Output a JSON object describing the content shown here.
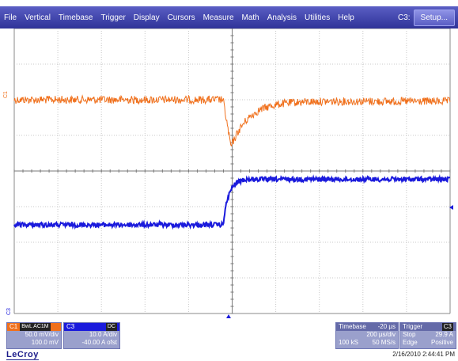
{
  "menu": {
    "items": [
      "File",
      "Vertical",
      "Timebase",
      "Trigger",
      "Display",
      "Cursors",
      "Measure",
      "Math",
      "Analysis",
      "Utilities",
      "Help"
    ],
    "channel_label": "C3:",
    "setup_label": "Setup..."
  },
  "markers": {
    "c1": "C1",
    "c3": "C3"
  },
  "channels": {
    "c1": {
      "name": "C1",
      "tags": "BwL AC1M",
      "scale": "50.0 mV/div",
      "offset": "100.0 mV",
      "color": "#f0701c"
    },
    "c3": {
      "name": "C3",
      "tags": "DC",
      "scale": "10.0 A/div",
      "offset": "-40.00 A ofst",
      "color": "#1a1adc"
    }
  },
  "timebase": {
    "label": "Timebase",
    "delay": "-20 µs",
    "per_div": "200 µs/div",
    "samples": "100 kS",
    "rate": "50 MS/s"
  },
  "trigger": {
    "label": "Trigger",
    "channel": "C3",
    "mode": "Stop",
    "level": "29.9 A",
    "type": "Edge",
    "slope": "Positive"
  },
  "brand": "LeCroy",
  "timestamp": "2/16/2010 2:44:41 PM"
}
